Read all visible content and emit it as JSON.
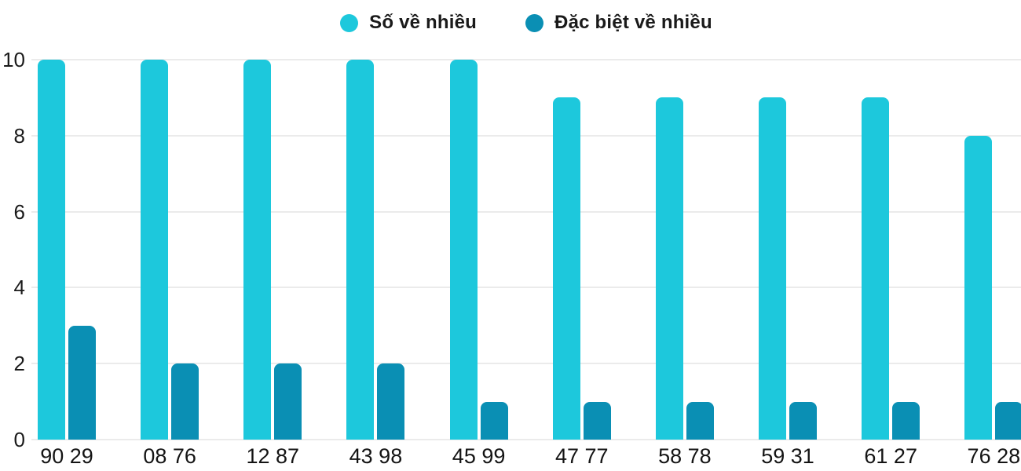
{
  "chart_data": {
    "type": "bar",
    "title": "",
    "categories": [
      "90 29",
      "08 76",
      "12 87",
      "43 98",
      "45 99",
      "47 77",
      "58 78",
      "59 31",
      "61 27",
      "76 28"
    ],
    "series": [
      {
        "name": "Số về nhiều",
        "color": "#1dc8dc",
        "values": [
          10,
          10,
          10,
          10,
          10,
          9,
          9,
          9,
          9,
          8
        ]
      },
      {
        "name": "Đặc biệt về nhiều",
        "color": "#0a8fb4",
        "values": [
          3,
          2,
          2,
          2,
          1,
          1,
          1,
          1,
          1,
          1
        ]
      }
    ],
    "xlabel": "",
    "ylabel": "",
    "ylim": [
      0,
      10
    ],
    "yticks": [
      0,
      2,
      4,
      6,
      8,
      10
    ],
    "grid": true,
    "legend_position": "top",
    "colors": {
      "grid_line": "#ebebeb",
      "axis_text": "#1a1a1a",
      "background": "#ffffff"
    }
  }
}
